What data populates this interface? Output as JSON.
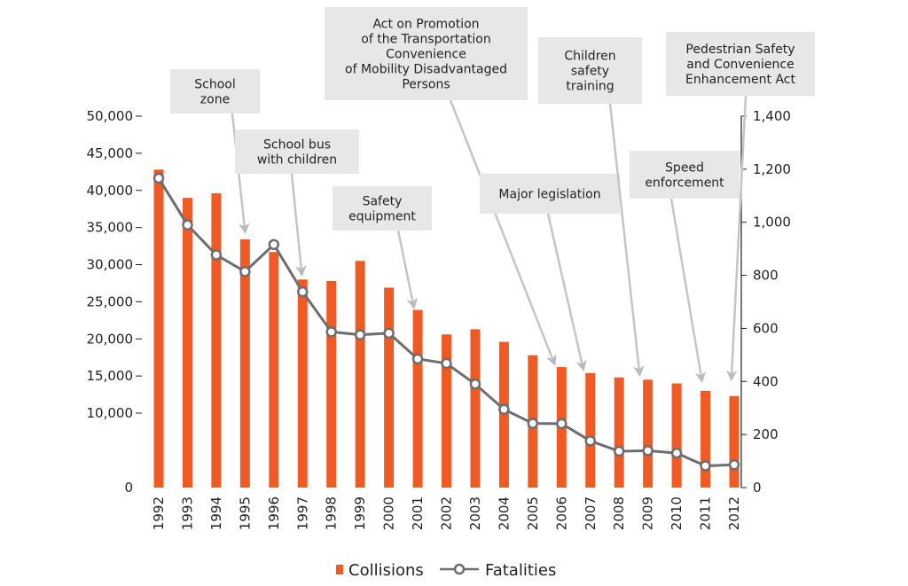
{
  "chart_data": {
    "type": "bar",
    "categories": [
      "1992",
      "1993",
      "1994",
      "1995",
      "1996",
      "1997",
      "1998",
      "1999",
      "2000",
      "2001",
      "2002",
      "2003",
      "2004",
      "2005",
      "2006",
      "2007",
      "2008",
      "2009",
      "2010",
      "2011",
      "2012"
    ],
    "series": [
      {
        "name": "Collisions",
        "type": "bar",
        "axis": "left",
        "color": "#f05a24",
        "values": [
          42800,
          39000,
          39600,
          33400,
          31700,
          28000,
          27800,
          30500,
          26900,
          23900,
          20600,
          21300,
          19600,
          17800,
          16200,
          15400,
          14800,
          14500,
          14000,
          13000,
          12300
        ]
      },
      {
        "name": "Fatalities",
        "type": "line",
        "axis": "right",
        "color": "#6d6e71",
        "values": [
          1166,
          990,
          877,
          814,
          916,
          738,
          587,
          576,
          582,
          485,
          468,
          390,
          295,
          242,
          241,
          176,
          137,
          139,
          130,
          82,
          86
        ]
      }
    ],
    "ylim_left": [
      0,
      50000
    ],
    "ylim_right": [
      0,
      1400
    ],
    "yticks_left": [
      "0",
      "10,000",
      "15,000",
      "20,000",
      "25,000",
      "30,000",
      "35,000",
      "40,000",
      "45,000",
      "50,000"
    ],
    "yticks_right": [
      "0",
      "200",
      "400",
      "600",
      "800",
      "1,000",
      "1,200",
      "1,400"
    ],
    "yticks_left_values": [
      0,
      10000,
      15000,
      20000,
      25000,
      30000,
      35000,
      40000,
      45000,
      50000
    ],
    "yticks_right_values": [
      0,
      200,
      400,
      600,
      800,
      1000,
      1200,
      1400
    ],
    "legend_position": "bottom-center",
    "annotations": [
      {
        "lines": [
          "School",
          "zone"
        ],
        "points_to": "1995"
      },
      {
        "lines": [
          "School bus",
          "with children"
        ],
        "points_to": "1997"
      },
      {
        "lines": [
          "Safety",
          "equipment"
        ],
        "points_to": "2001"
      },
      {
        "lines": [
          "Act on Promotion",
          "of the Transportation",
          "Convenience",
          "of Mobility Disadvantaged",
          "Persons"
        ],
        "points_to": "2006"
      },
      {
        "lines": [
          "Major legislation"
        ],
        "points_to": "2007"
      },
      {
        "lines": [
          "Children",
          "safety",
          "training"
        ],
        "points_to": "2009"
      },
      {
        "lines": [
          "Speed",
          "enforcement"
        ],
        "points_to": "2011"
      },
      {
        "lines": [
          "Pedestrian Safety",
          "and Convenience",
          "Enhancement Act"
        ],
        "points_to": "2012"
      }
    ]
  }
}
